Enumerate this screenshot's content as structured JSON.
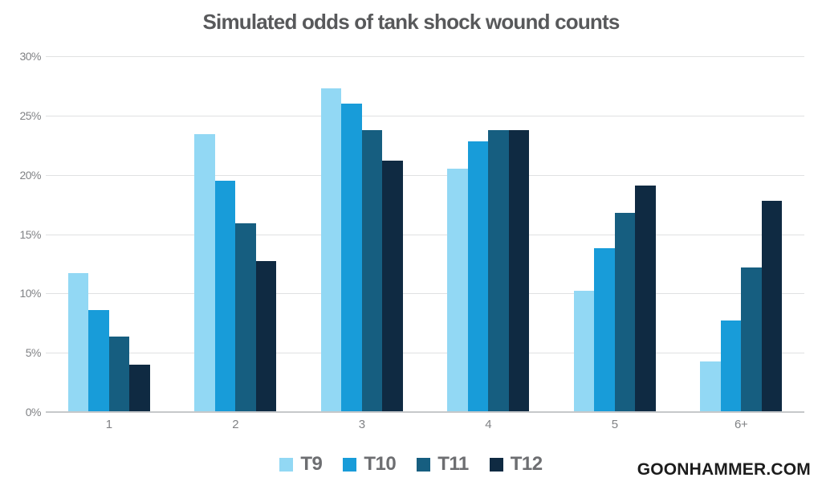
{
  "watermark": "GOONHAMMER.COM",
  "chart_data": {
    "type": "bar",
    "title": "Simulated odds of tank shock wound counts",
    "xlabel": "",
    "ylabel": "",
    "categories": [
      "1",
      "2",
      "3",
      "4",
      "5",
      "6+"
    ],
    "series": [
      {
        "name": "T9",
        "color": "#92D8F4",
        "values": [
          11.7,
          23.4,
          27.3,
          20.5,
          10.2,
          4.3
        ]
      },
      {
        "name": "T10",
        "color": "#189CD9",
        "values": [
          8.6,
          19.5,
          26.0,
          22.8,
          13.8,
          7.7
        ]
      },
      {
        "name": "T11",
        "color": "#165E80",
        "values": [
          6.4,
          15.9,
          23.8,
          23.8,
          16.8,
          12.2
        ]
      },
      {
        "name": "T12",
        "color": "#0F2A42",
        "values": [
          4.0,
          12.7,
          21.2,
          23.8,
          19.1,
          17.8
        ]
      }
    ],
    "ylim": [
      0,
      30
    ],
    "ytick_step": 5,
    "ytick_labels": [
      "0%",
      "5%",
      "10%",
      "15%",
      "20%",
      "25%",
      "30%"
    ],
    "grid": true,
    "legend_position": "bottom-center"
  }
}
